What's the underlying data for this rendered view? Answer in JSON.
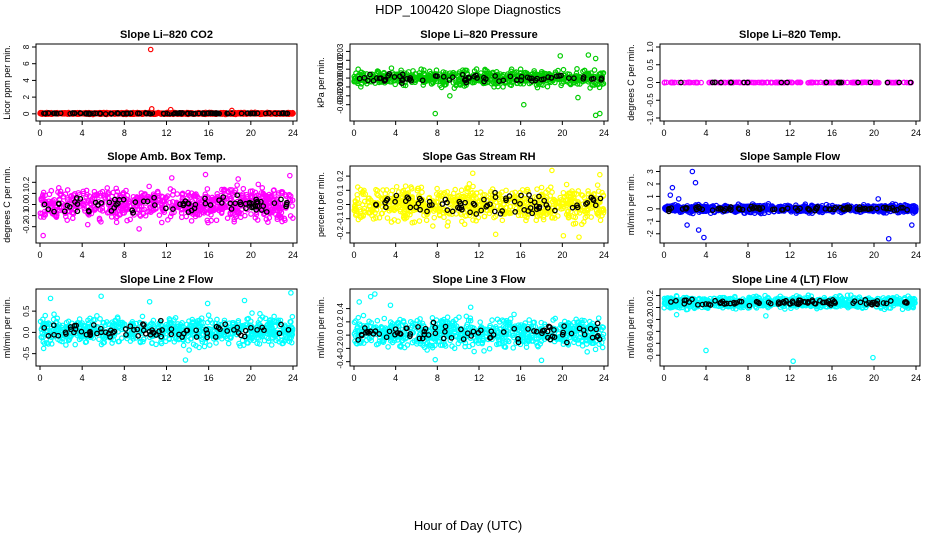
{
  "figure": {
    "title": "HDP_100420  Slope Diagnostics",
    "xlabel": "Hour of Day (UTC)"
  },
  "chart_data": [
    {
      "type": "scatter",
      "title": "Slope Li–820 CO2",
      "ylabel": "Licor ppm per min.",
      "xlim": [
        0,
        24
      ],
      "ylim": [
        -0.5,
        8
      ],
      "xticks": [
        0,
        4,
        8,
        12,
        16,
        20,
        24
      ],
      "yticks": [
        0,
        2,
        4,
        6,
        8
      ],
      "ytick_labels": [
        "0",
        "2",
        "4",
        "6",
        "8"
      ],
      "color": "#ff0000",
      "density": 900,
      "band": [
        -0.1,
        0.2
      ],
      "series": [
        {
          "name": "anomaly",
          "color": "#ff0000",
          "points": [
            [
              10.5,
              7.7
            ],
            [
              10.6,
              0.6
            ],
            [
              12.4,
              0.5
            ],
            [
              18.2,
              0.4
            ]
          ]
        }
      ]
    },
    {
      "type": "scatter",
      "title": "Slope Li–820 Pressure",
      "ylabel": "kPa per min.",
      "xlim": [
        0,
        24
      ],
      "ylim": [
        -0.045,
        0.035
      ],
      "xticks": [
        0,
        4,
        8,
        12,
        16,
        20,
        24
      ],
      "yticks": [
        -0.03,
        -0.02,
        -0.01,
        0,
        0.01,
        0.02,
        0.03
      ],
      "ytick_labels": [
        "-0.03",
        "-0.02",
        "-0.01",
        "0.00",
        "0.01",
        "0.02",
        "0.03"
      ],
      "color": "#00cc00",
      "density": 650,
      "band": [
        -0.012,
        0.012
      ],
      "series": [
        {
          "name": "outliers",
          "color": "#00cc00",
          "points": [
            [
              7.8,
              -0.04
            ],
            [
              9.2,
              -0.02
            ],
            [
              16.3,
              -0.03
            ],
            [
              21.5,
              -0.022
            ],
            [
              23.6,
              -0.04
            ],
            [
              23.2,
              -0.042
            ],
            [
              22.5,
              0.026
            ],
            [
              19.8,
              0.025
            ],
            [
              23.2,
              0.022
            ],
            [
              0.4,
              0.01
            ]
          ]
        }
      ]
    },
    {
      "type": "scatter",
      "title": "Slope Li–820 Temp.",
      "ylabel": "degrees C per min.",
      "xlim": [
        0,
        24
      ],
      "ylim": [
        -1,
        1
      ],
      "xticks": [
        0,
        4,
        8,
        12,
        16,
        20,
        24
      ],
      "yticks": [
        -1,
        -0.5,
        0,
        0.5,
        1
      ],
      "ytick_labels": [
        "-1.0",
        "-0.5",
        "0.0",
        "0.5",
        "1.0"
      ],
      "color": "#ff00ff",
      "density": 180,
      "band": [
        -0.01,
        0.01
      ],
      "series": []
    },
    {
      "type": "scatter",
      "title": "Slope Amb. Box Temp.",
      "ylabel": "degrees C per min.",
      "xlim": [
        0,
        24
      ],
      "ylim": [
        -0.32,
        0.32
      ],
      "xticks": [
        0,
        4,
        8,
        12,
        16,
        20,
        24
      ],
      "yticks": [
        -0.2,
        -0.1,
        0,
        0.1,
        0.2
      ],
      "ytick_labels": [
        "-0.2",
        "-0.1",
        "0.0",
        "0.1",
        "0.2"
      ],
      "color": "#ff00ff",
      "density": 720,
      "band": [
        -0.2,
        0.2
      ],
      "series": [
        {
          "name": "outliers",
          "color": "#ff00ff",
          "points": [
            [
              0.3,
              -0.28
            ],
            [
              12.5,
              0.24
            ],
            [
              15.7,
              0.27
            ],
            [
              23.7,
              0.26
            ],
            [
              9.4,
              -0.22
            ],
            [
              18.8,
              0.23
            ]
          ]
        }
      ]
    },
    {
      "type": "scatter",
      "title": "Slope Gas Stream RH",
      "ylabel": "percent per min.",
      "xlim": [
        0,
        24
      ],
      "ylim": [
        -0.25,
        0.25
      ],
      "xticks": [
        0,
        4,
        8,
        12,
        16,
        20,
        24
      ],
      "yticks": [
        -0.2,
        -0.1,
        0,
        0.1,
        0.2
      ],
      "ytick_labels": [
        "-0.2",
        "-0.1",
        "0.0",
        "0.1",
        "0.2"
      ],
      "color": "#ffff00",
      "density": 720,
      "band": [
        -0.17,
        0.17
      ],
      "series": [
        {
          "name": "outliers",
          "color": "#ffff00",
          "points": [
            [
              11.4,
              0.22
            ],
            [
              19.0,
              0.24
            ],
            [
              20.1,
              -0.22
            ],
            [
              21.6,
              -0.23
            ],
            [
              23.6,
              0.21
            ],
            [
              13.6,
              -0.21
            ]
          ]
        }
      ]
    },
    {
      "type": "scatter",
      "title": "Slope Sample Flow",
      "ylabel": "ml/min per min.",
      "xlim": [
        0,
        24
      ],
      "ylim": [
        -2.5,
        3.2
      ],
      "xticks": [
        0,
        4,
        8,
        12,
        16,
        20,
        24
      ],
      "yticks": [
        -2,
        -1,
        0,
        1,
        2,
        3
      ],
      "ytick_labels": [
        "-2",
        "-1",
        "0",
        "1",
        "2",
        "3"
      ],
      "color": "#0000ff",
      "density": 800,
      "band": [
        -0.45,
        0.45
      ],
      "series": [
        {
          "name": "outliers",
          "color": "#0000ff",
          "points": [
            [
              0.8,
              1.7
            ],
            [
              0.6,
              1.1
            ],
            [
              2.7,
              3.0
            ],
            [
              3.0,
              2.1
            ],
            [
              2.2,
              -1.3
            ],
            [
              3.3,
              -1.7
            ],
            [
              3.8,
              -2.3
            ],
            [
              1.4,
              0.8
            ],
            [
              21.4,
              -2.4
            ],
            [
              23.6,
              -1.3
            ],
            [
              20.4,
              0.8
            ]
          ]
        }
      ]
    },
    {
      "type": "scatter",
      "title": "Slope Line 2 Flow",
      "ylabel": "ml/min per min.",
      "xlim": [
        0,
        24
      ],
      "ylim": [
        -0.72,
        0.95
      ],
      "xticks": [
        0,
        4,
        8,
        12,
        16,
        20,
        24
      ],
      "yticks": [
        -0.5,
        0,
        0.5
      ],
      "ytick_labels": [
        "-0.5",
        "0.0",
        "0.5"
      ],
      "color": "#00ffff",
      "density": 720,
      "band": [
        -0.45,
        0.5
      ],
      "series": [
        {
          "name": "outliers",
          "color": "#00ffff",
          "points": [
            [
              1.0,
              0.8
            ],
            [
              5.8,
              0.85
            ],
            [
              13.8,
              -0.65
            ],
            [
              19.4,
              0.75
            ],
            [
              23.8,
              0.93
            ],
            [
              10.4,
              0.72
            ],
            [
              15.9,
              0.68
            ]
          ]
        }
      ]
    },
    {
      "type": "scatter",
      "title": "Slope Line 3 Flow",
      "ylabel": "ml/min per min.",
      "xlim": [
        0,
        24
      ],
      "ylim": [
        -0.42,
        0.65
      ],
      "xticks": [
        0,
        4,
        8,
        12,
        16,
        20,
        24
      ],
      "yticks": [
        -0.4,
        -0.2,
        0,
        0.2,
        0.4
      ],
      "ytick_labels": [
        "-0.4",
        "-0.2",
        "0.0",
        "0.2",
        "0.4"
      ],
      "color": "#00ffff",
      "density": 720,
      "band": [
        -0.3,
        0.35
      ],
      "series": [
        {
          "name": "outliers",
          "color": "#00ffff",
          "points": [
            [
              1.6,
              0.58
            ],
            [
              2.0,
              0.62
            ],
            [
              0.5,
              0.5
            ],
            [
              18.0,
              -0.38
            ],
            [
              7.8,
              -0.37
            ],
            [
              11.2,
              0.42
            ],
            [
              3.5,
              0.45
            ]
          ]
        }
      ]
    },
    {
      "type": "scatter",
      "title": "Slope Line 4 (LT) Flow",
      "ylabel": "ml/min per min.",
      "xlim": [
        0,
        24
      ],
      "ylim": [
        -0.93,
        0.26
      ],
      "xticks": [
        0,
        4,
        8,
        12,
        16,
        20,
        24
      ],
      "yticks": [
        -0.8,
        -0.6,
        -0.4,
        -0.2,
        0,
        0.2
      ],
      "ytick_labels": [
        "-0.8",
        "-0.6",
        "-0.4",
        "-0.2",
        "0.0",
        "0.2"
      ],
      "color": "#00ffff",
      "density": 820,
      "band": [
        -0.05,
        0.22
      ],
      "series": [
        {
          "name": "outliers",
          "color": "#00ffff",
          "points": [
            [
              4.0,
              -0.72
            ],
            [
              12.3,
              -0.9
            ],
            [
              19.9,
              -0.84
            ],
            [
              1.2,
              -0.12
            ],
            [
              9.7,
              -0.14
            ]
          ]
        }
      ]
    }
  ]
}
